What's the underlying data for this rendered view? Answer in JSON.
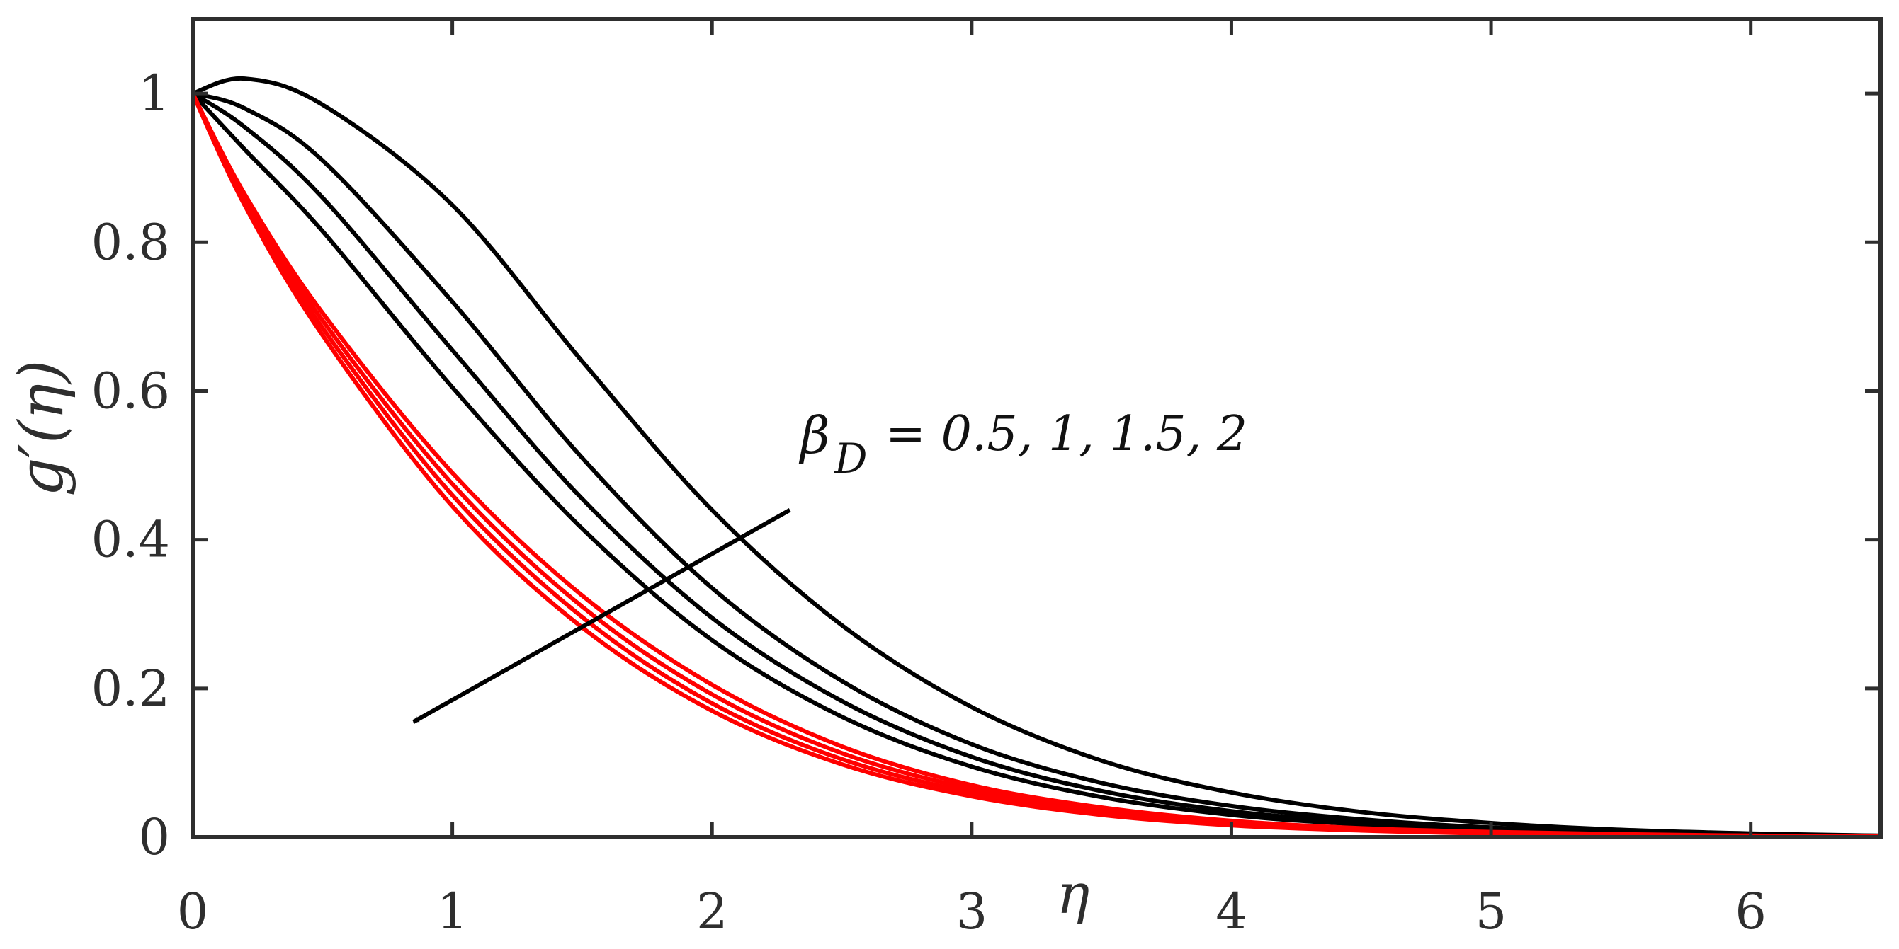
{
  "chart_data": {
    "type": "line",
    "xlabel": "η",
    "ylabel": "g′(η)",
    "xlim": [
      0,
      6.5
    ],
    "ylim": [
      0,
      1.1
    ],
    "x_ticks": [
      "0",
      "1",
      "2",
      "3",
      "4",
      "5",
      "6"
    ],
    "y_ticks": [
      "0",
      "0.2",
      "0.4",
      "0.6",
      "0.8",
      "1"
    ],
    "grid": false,
    "annotation": {
      "symbol": "β",
      "subscript": "D",
      "text": "= 0.5, 1, 1.5, 2",
      "arrow_from": [
        2.3,
        0.44
      ],
      "arrow_to": [
        0.85,
        0.155
      ]
    },
    "x": [
      0,
      0.2,
      0.5,
      1,
      1.5,
      2,
      2.5,
      3,
      3.5,
      4,
      4.5,
      5,
      5.5,
      6,
      6.5
    ],
    "series": [
      {
        "group": "black",
        "color": "#000000",
        "values": [
          1.0,
          1.02,
          0.985,
          0.85,
          0.64,
          0.44,
          0.285,
          0.175,
          0.103,
          0.06,
          0.034,
          0.019,
          0.01,
          0.005,
          0.002
        ]
      },
      {
        "group": "black",
        "color": "#000000",
        "values": [
          1.0,
          0.98,
          0.91,
          0.72,
          0.51,
          0.335,
          0.21,
          0.125,
          0.073,
          0.042,
          0.024,
          0.013,
          0.007,
          0.004,
          0.002
        ]
      },
      {
        "group": "black",
        "color": "#000000",
        "values": [
          1.0,
          0.955,
          0.86,
          0.655,
          0.455,
          0.295,
          0.183,
          0.108,
          0.062,
          0.035,
          0.02,
          0.011,
          0.006,
          0.003,
          0.001
        ]
      },
      {
        "group": "black",
        "color": "#000000",
        "values": [
          1.0,
          0.925,
          0.815,
          0.605,
          0.415,
          0.265,
          0.162,
          0.095,
          0.054,
          0.03,
          0.017,
          0.009,
          0.005,
          0.003,
          0.001
        ]
      },
      {
        "group": "red",
        "color": "#ff0000",
        "values": [
          1.0,
          0.865,
          0.705,
          0.49,
          0.325,
          0.205,
          0.122,
          0.07,
          0.04,
          0.022,
          0.012,
          0.007,
          0.004,
          0.002,
          0.001
        ]
      },
      {
        "group": "red",
        "color": "#ff0000",
        "values": [
          1.0,
          0.86,
          0.695,
          0.475,
          0.31,
          0.192,
          0.113,
          0.065,
          0.036,
          0.02,
          0.011,
          0.006,
          0.003,
          0.002,
          0.001
        ]
      },
      {
        "group": "red",
        "color": "#ff0000",
        "values": [
          1.0,
          0.855,
          0.685,
          0.46,
          0.296,
          0.18,
          0.105,
          0.06,
          0.033,
          0.018,
          0.01,
          0.005,
          0.003,
          0.002,
          0.001
        ]
      },
      {
        "group": "red",
        "color": "#ff0000",
        "values": [
          1.0,
          0.85,
          0.675,
          0.445,
          0.282,
          0.17,
          0.098,
          0.055,
          0.03,
          0.016,
          0.009,
          0.005,
          0.003,
          0.001,
          0.0
        ]
      }
    ]
  }
}
